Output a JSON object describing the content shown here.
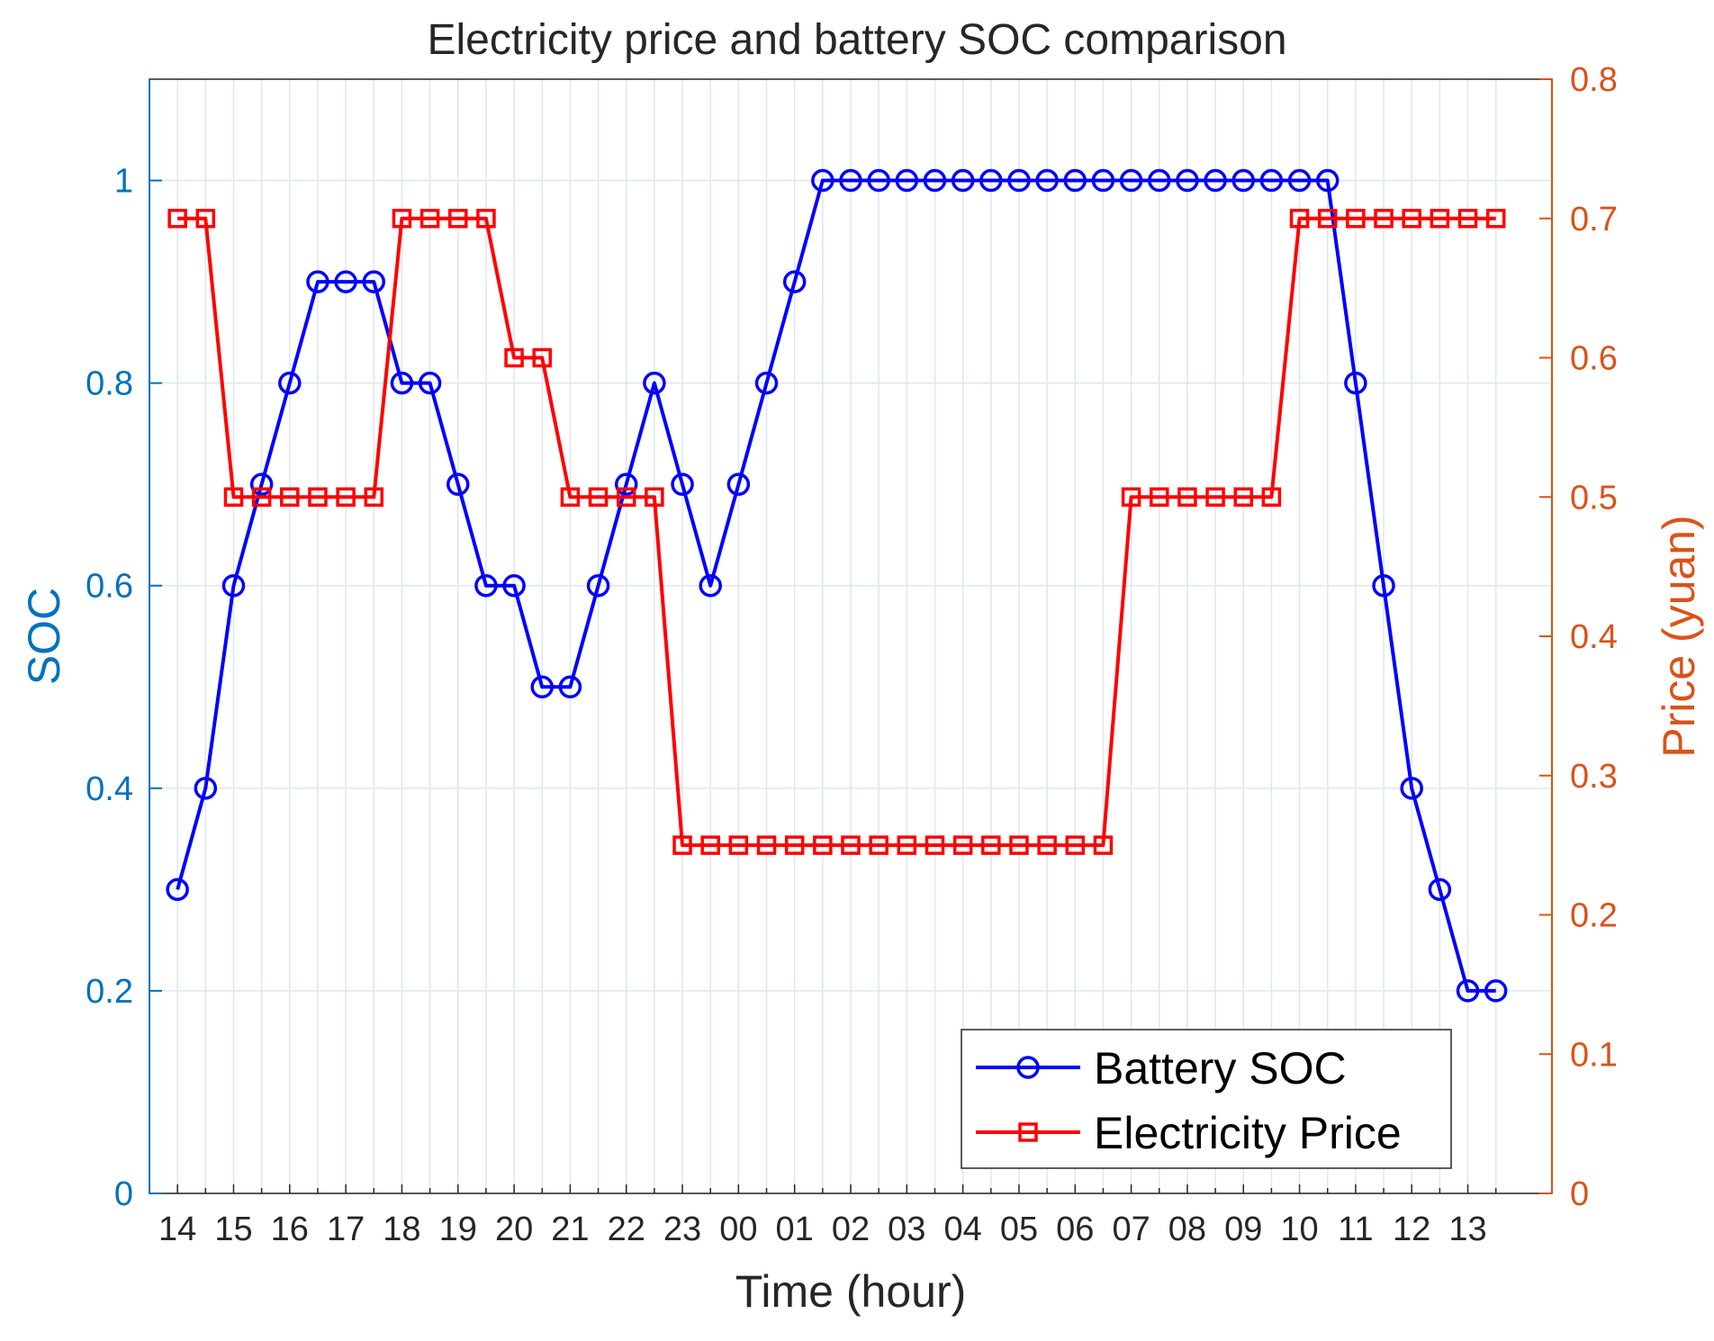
{
  "chart_data": {
    "type": "line",
    "title": "Electricity price and battery SOC comparison",
    "xlabel": "Time (hour)",
    "ylabel_left": "SOC",
    "ylabel_right": "Price (yuan)",
    "x_tick_labels": [
      "14",
      "15",
      "16",
      "17",
      "18",
      "19",
      "20",
      "21",
      "22",
      "23",
      "00",
      "01",
      "02",
      "03",
      "04",
      "05",
      "06",
      "07",
      "08",
      "09",
      "10",
      "11",
      "12",
      "13"
    ],
    "x_step": 0.5,
    "x_range": [
      -0.5,
      24.5
    ],
    "ylim_left": [
      0,
      1.1
    ],
    "yticks_left": [
      0,
      0.2,
      0.4,
      0.6,
      0.8,
      1
    ],
    "ytick_labels_left": [
      "0",
      "0.2",
      "0.4",
      "0.6",
      "0.8",
      "1"
    ],
    "ylim_right": [
      0,
      0.8
    ],
    "yticks_right": [
      0,
      0.1,
      0.2,
      0.3,
      0.4,
      0.5,
      0.6,
      0.7,
      0.8
    ],
    "ytick_labels_right": [
      "0",
      "0.1",
      "0.2",
      "0.3",
      "0.4",
      "0.5",
      "0.6",
      "0.7",
      "0.8"
    ],
    "grid": true,
    "legend_position": "bottom-right",
    "series": [
      {
        "name": "Battery SOC",
        "axis": "left",
        "color": "#0000ff",
        "marker": "circle",
        "values": [
          0.3,
          0.4,
          0.6,
          0.7,
          0.8,
          0.9,
          0.9,
          0.9,
          0.8,
          0.8,
          0.7,
          0.6,
          0.6,
          0.5,
          0.5,
          0.6,
          0.7,
          0.8,
          0.7,
          0.6,
          0.7,
          0.8,
          0.9,
          1,
          1,
          1,
          1,
          1,
          1,
          1,
          1,
          1,
          1,
          1,
          1,
          1,
          1,
          1,
          1,
          1,
          1,
          1,
          0.8,
          0.6,
          0.4,
          0.3,
          0.2,
          0.2
        ]
      },
      {
        "name": "Electricity Price",
        "axis": "right",
        "color": "#ff0000",
        "marker": "square",
        "values": [
          0.7,
          0.7,
          0.5,
          0.5,
          0.5,
          0.5,
          0.5,
          0.5,
          0.7,
          0.7,
          0.7,
          0.7,
          0.6,
          0.6,
          0.5,
          0.5,
          0.5,
          0.5,
          0.25,
          0.25,
          0.25,
          0.25,
          0.25,
          0.25,
          0.25,
          0.25,
          0.25,
          0.25,
          0.25,
          0.25,
          0.25,
          0.25,
          0.25,
          0.25,
          0.5,
          0.5,
          0.5,
          0.5,
          0.5,
          0.5,
          0.7,
          0.7,
          0.7,
          0.7,
          0.7,
          0.7,
          0.7,
          0.7
        ]
      }
    ],
    "colors": {
      "left_axis": "#0072bd",
      "right_axis": "#d95319",
      "grid": "#dfe6ee",
      "frame": "#262626"
    }
  }
}
